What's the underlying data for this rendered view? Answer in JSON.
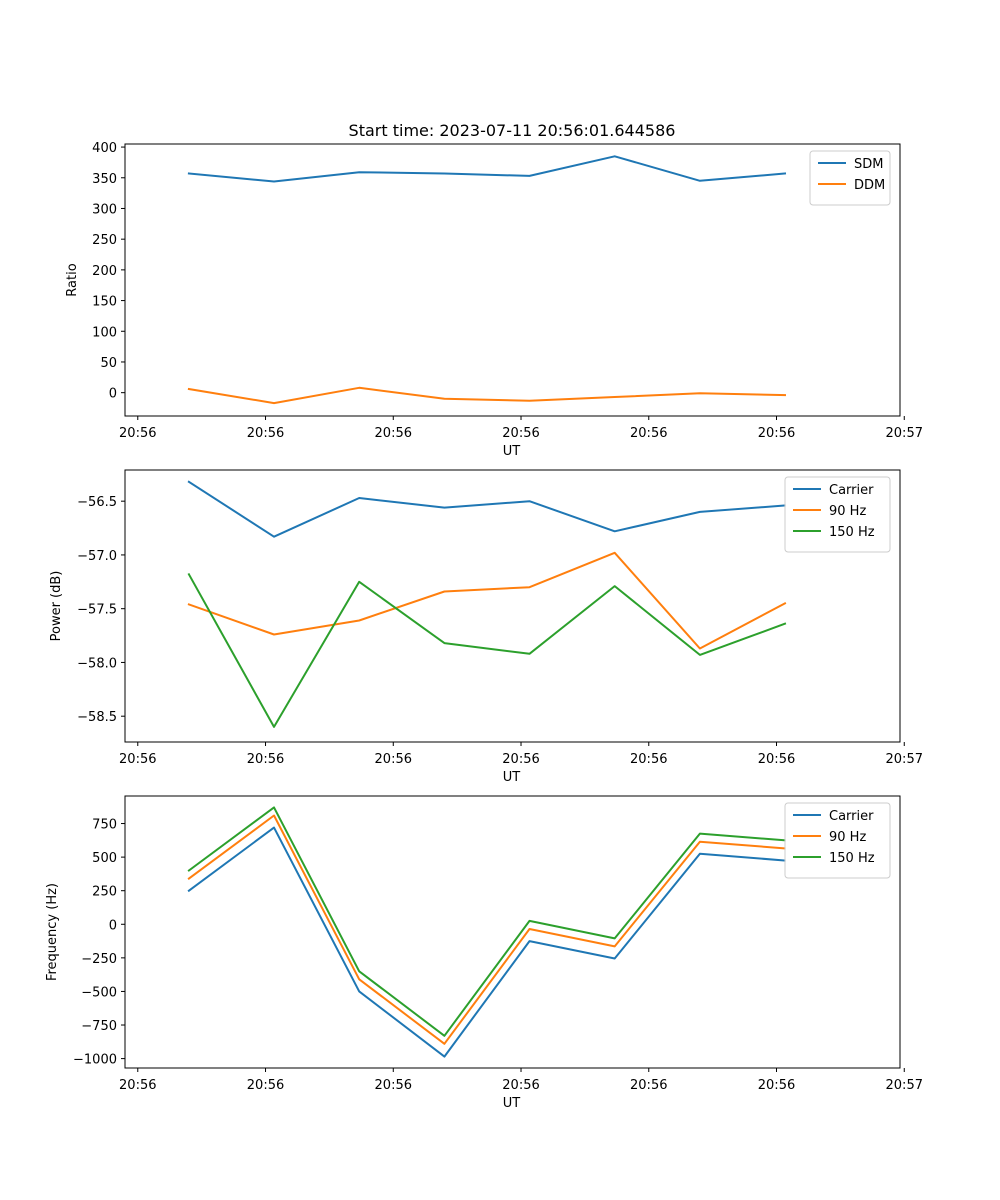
{
  "figure": {
    "title": "Start time: 2023-07-11 20:56:01.644586",
    "colors": {
      "blue": "#1f77b4",
      "orange": "#ff7f0e",
      "green": "#2ca02c"
    }
  },
  "chart_data": [
    {
      "type": "line",
      "title": "Start time: 2023-07-11 20:56:01.644586",
      "xlabel": "UT",
      "ylabel": "Ratio",
      "x_index": [
        0,
        1,
        2,
        3,
        4,
        5,
        6,
        7
      ],
      "xlim": [
        -0.75,
        8.35
      ],
      "x_ticks": [
        -0.6,
        0.9,
        2.4,
        3.9,
        5.4,
        6.9,
        8.4
      ],
      "x_tick_labels": [
        "20:56",
        "20:56",
        "20:56",
        "20:56",
        "20:56",
        "20:56",
        "20:57"
      ],
      "ylim": [
        -38,
        405
      ],
      "y_ticks": [
        0,
        50,
        100,
        150,
        200,
        250,
        300,
        350,
        400
      ],
      "y_tick_labels": [
        "0",
        "50",
        "100",
        "150",
        "200",
        "250",
        "300",
        "350",
        "400"
      ],
      "legend": "top-right",
      "series": [
        {
          "name": "SDM",
          "color": "#1f77b4",
          "values": [
            357,
            344,
            359,
            357,
            353,
            385,
            345,
            357
          ]
        },
        {
          "name": "DDM",
          "color": "#ff7f0e",
          "values": [
            6,
            -17,
            8,
            -10,
            -13,
            -7,
            -1,
            -4
          ]
        }
      ]
    },
    {
      "type": "line",
      "title": "",
      "xlabel": "UT",
      "ylabel": "Power (dB)",
      "x_index": [
        0,
        1,
        2,
        3,
        4,
        5,
        6,
        7
      ],
      "xlim": [
        -0.75,
        8.35
      ],
      "x_ticks": [
        -0.6,
        0.9,
        2.4,
        3.9,
        5.4,
        6.9,
        8.4
      ],
      "x_tick_labels": [
        "20:56",
        "20:56",
        "20:56",
        "20:56",
        "20:56",
        "20:56",
        "20:57"
      ],
      "ylim": [
        -58.74,
        -56.21
      ],
      "y_ticks": [
        -58.5,
        -58.0,
        -57.5,
        -57.0,
        -56.5
      ],
      "y_tick_labels": [
        "−58.5",
        "−58.0",
        "−57.5",
        "−57.0",
        "−56.5"
      ],
      "legend": "top-right",
      "series": [
        {
          "name": "Carrier",
          "color": "#1f77b4",
          "values": [
            -56.32,
            -56.83,
            -56.47,
            -56.56,
            -56.5,
            -56.78,
            -56.6,
            -56.54
          ]
        },
        {
          "name": "90 Hz",
          "color": "#ff7f0e",
          "values": [
            -57.46,
            -57.74,
            -57.61,
            -57.34,
            -57.3,
            -56.98,
            -57.87,
            -57.45
          ]
        },
        {
          "name": "150 Hz",
          "color": "#2ca02c",
          "values": [
            -57.18,
            -58.6,
            -57.25,
            -57.82,
            -57.92,
            -57.29,
            -57.93,
            -57.64
          ]
        }
      ]
    },
    {
      "type": "line",
      "title": "",
      "xlabel": "UT",
      "ylabel": "Frequency (Hz)",
      "x_index": [
        0,
        1,
        2,
        3,
        4,
        5,
        6,
        7
      ],
      "xlim": [
        -0.75,
        8.35
      ],
      "x_ticks": [
        -0.6,
        0.9,
        2.4,
        3.9,
        5.4,
        6.9,
        8.4
      ],
      "x_tick_labels": [
        "20:56",
        "20:56",
        "20:56",
        "20:56",
        "20:56",
        "20:56",
        "20:57"
      ],
      "ylim": [
        -1070,
        955
      ],
      "y_ticks": [
        -1000,
        -750,
        -500,
        -250,
        0,
        250,
        500,
        750
      ],
      "y_tick_labels": [
        "−1000",
        "−750",
        "−500",
        "−250",
        "0",
        "250",
        "500",
        "750"
      ],
      "legend": "top-right",
      "series": [
        {
          "name": "Carrier",
          "color": "#1f77b4",
          "values": [
            250,
            720,
            -500,
            -985,
            -125,
            -255,
            525,
            475
          ]
        },
        {
          "name": "90 Hz",
          "color": "#ff7f0e",
          "values": [
            340,
            810,
            -410,
            -890,
            -35,
            -165,
            615,
            565
          ]
        },
        {
          "name": "150 Hz",
          "color": "#2ca02c",
          "values": [
            400,
            870,
            -350,
            -830,
            25,
            -105,
            675,
            625
          ]
        }
      ]
    }
  ]
}
